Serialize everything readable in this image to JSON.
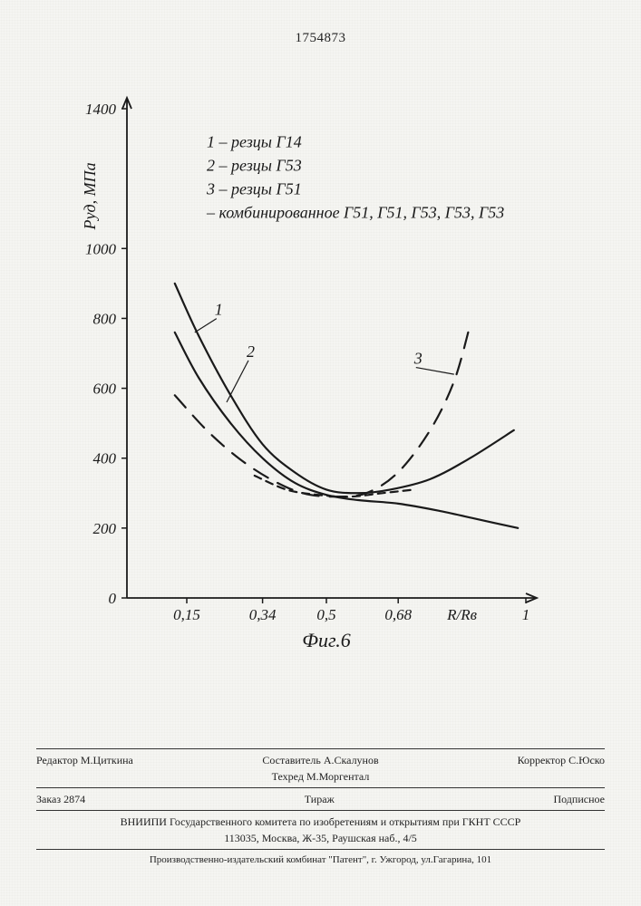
{
  "document_number": "1754873",
  "chart": {
    "type": "line",
    "y_label": "Pуд, МПа",
    "x_label_right": "R/Rв",
    "caption": "Фиг.6",
    "ylim": [
      0,
      1400
    ],
    "xlim": [
      0,
      1.0
    ],
    "y_ticks": [
      0,
      200,
      400,
      600,
      800,
      1000,
      1400
    ],
    "x_ticks": [
      0.15,
      0.34,
      0.5,
      0.68,
      1.0
    ],
    "axis_color": "#1a1a1a",
    "background": "#f5f5f2",
    "line_width_solid": 2.2,
    "line_width_dashed": 2.2,
    "curves": [
      {
        "id": "1",
        "style": "solid",
        "color": "#1a1a1a",
        "points": [
          [
            0.12,
            900
          ],
          [
            0.18,
            750
          ],
          [
            0.26,
            580
          ],
          [
            0.34,
            440
          ],
          [
            0.42,
            360
          ],
          [
            0.5,
            310
          ],
          [
            0.58,
            300
          ],
          [
            0.66,
            310
          ],
          [
            0.76,
            340
          ],
          [
            0.86,
            400
          ],
          [
            0.97,
            480
          ]
        ]
      },
      {
        "id": "2",
        "style": "solid",
        "color": "#1a1a1a",
        "points": [
          [
            0.12,
            760
          ],
          [
            0.18,
            630
          ],
          [
            0.26,
            500
          ],
          [
            0.34,
            400
          ],
          [
            0.42,
            330
          ],
          [
            0.5,
            295
          ],
          [
            0.58,
            280
          ],
          [
            0.68,
            270
          ],
          [
            0.78,
            250
          ],
          [
            0.88,
            225
          ],
          [
            0.98,
            200
          ]
        ]
      },
      {
        "id": "3",
        "style": "long-dash",
        "color": "#1a1a1a",
        "points": [
          [
            0.12,
            580
          ],
          [
            0.2,
            480
          ],
          [
            0.28,
            400
          ],
          [
            0.36,
            340
          ],
          [
            0.44,
            300
          ],
          [
            0.52,
            290
          ],
          [
            0.6,
            300
          ],
          [
            0.68,
            360
          ],
          [
            0.76,
            480
          ],
          [
            0.82,
            620
          ],
          [
            0.86,
            780
          ]
        ]
      },
      {
        "id": "dash-extra",
        "style": "short-dash",
        "color": "#1a1a1a",
        "points": [
          [
            0.32,
            350
          ],
          [
            0.4,
            310
          ],
          [
            0.48,
            295
          ],
          [
            0.56,
            290
          ],
          [
            0.64,
            300
          ],
          [
            0.72,
            310
          ]
        ]
      }
    ],
    "curve_labels": [
      {
        "text": "1",
        "x": 0.22,
        "y": 810,
        "lead_to": [
          0.17,
          760
        ]
      },
      {
        "text": "2",
        "x": 0.3,
        "y": 690,
        "lead_to": [
          0.25,
          560
        ]
      },
      {
        "text": "3",
        "x": 0.72,
        "y": 670,
        "lead_to": [
          0.82,
          640
        ]
      }
    ],
    "legend": {
      "x": 0.2,
      "y_top": 1290,
      "rows": [
        "1 – резцы Г14",
        "2 – резцы Г53",
        "3 – резцы Г51",
        " – комбинированное Г51, Г51, Г53, Г53, Г53"
      ]
    }
  },
  "footer": {
    "compiler_label": "Составитель",
    "compiler_name": "А.Скалунов",
    "editor_label": "Редактор",
    "editor_name": "М.Циткина",
    "techred_label": "Техред",
    "techred_name": "М.Моргентал",
    "corrector_label": "Корректор",
    "corrector_name": "С.Юско",
    "order_label": "Заказ",
    "order_number": "2874",
    "tirazh_label": "Тираж",
    "podpisnoe": "Подписное",
    "org_line": "ВНИИПИ Государственного комитета по изобретениям и открытиям при ГКНТ СССР",
    "address1": "113035, Москва, Ж-35, Раушская наб., 4/5",
    "address2": "Производственно-издательский комбинат \"Патент\", г. Ужгород, ул.Гагарина, 101"
  }
}
